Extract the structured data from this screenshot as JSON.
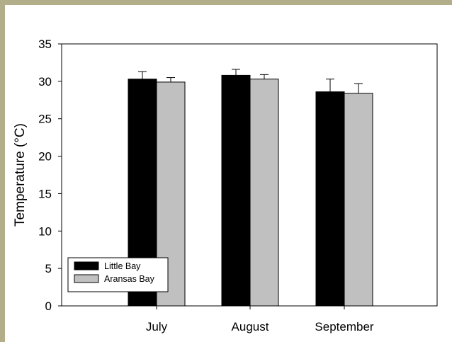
{
  "chart_data": {
    "type": "bar",
    "title": "",
    "xlabel": "",
    "ylabel": "Temperature (°C)",
    "ylim": [
      0,
      35
    ],
    "yticks": [
      0,
      5,
      10,
      15,
      20,
      25,
      30,
      35
    ],
    "categories": [
      "July",
      "August",
      "September"
    ],
    "series": [
      {
        "name": "Little Bay",
        "color": "#000000",
        "values": [
          30.3,
          30.8,
          28.6
        ],
        "errors": [
          1.0,
          0.8,
          1.7
        ]
      },
      {
        "name": "Aransas Bay",
        "color": "#c0c0c0",
        "values": [
          29.9,
          30.3,
          28.4
        ],
        "errors": [
          0.6,
          0.6,
          1.3
        ]
      }
    ],
    "legend_position": "bottom-left",
    "grid": false
  }
}
